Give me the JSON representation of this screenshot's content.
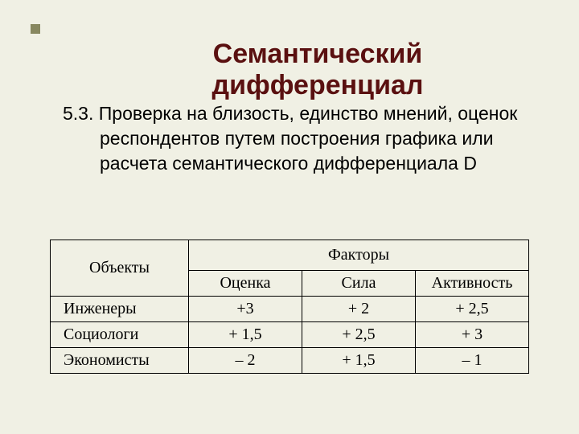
{
  "title": "Семантический дифференциал",
  "paragraph": {
    "number": "5.3.",
    "text": "Проверка на близость, единство мнений, оценок респондентов путем построения графика или расчета семантического дифференциала D"
  },
  "table": {
    "objects_header": "Объекты",
    "factors_header": "Факторы",
    "columns": [
      "Оценка",
      "Сила",
      "Активность"
    ],
    "rows": [
      {
        "object": "Инженеры",
        "values": [
          "+3",
          "+ 2",
          "+ 2,5"
        ]
      },
      {
        "object": "Социологи",
        "values": [
          "+ 1,5",
          "+ 2,5",
          "+ 3"
        ]
      },
      {
        "object": "Экономисты",
        "values": [
          "– 2",
          "+ 1,5",
          "– 1"
        ]
      }
    ]
  },
  "colors": {
    "background": "#f0f0e4",
    "title": "#5a1010",
    "bullet": "#888860",
    "border": "#000000",
    "text": "#000000"
  }
}
